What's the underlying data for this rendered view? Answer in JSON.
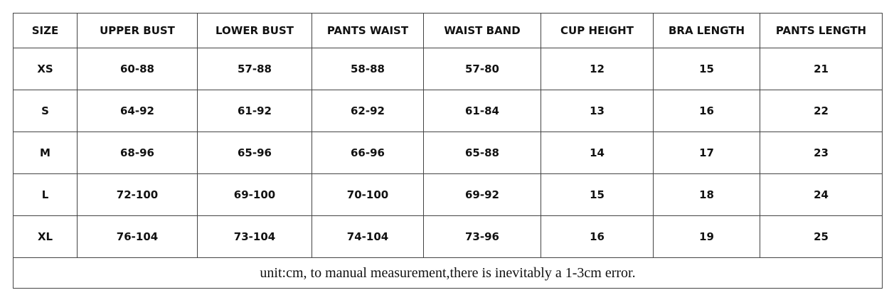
{
  "table": {
    "header": [
      "SIZE",
      "UPPER BUST",
      "LOWER BUST",
      "PANTS WAIST",
      "WAIST BAND",
      "CUP HEIGHT",
      "BRA LENGTH",
      "PANTS LENGTH"
    ],
    "rows": [
      [
        "XS",
        "60-88",
        "57-88",
        "58-88",
        "57-80",
        "12",
        "15",
        "21"
      ],
      [
        "S",
        "64-92",
        "61-92",
        "62-92",
        "61-84",
        "13",
        "16",
        "22"
      ],
      [
        "M",
        "68-96",
        "65-96",
        "66-96",
        "65-88",
        "14",
        "17",
        "23"
      ],
      [
        "L",
        "72-100",
        "69-100",
        "70-100",
        "69-92",
        "15",
        "18",
        "24"
      ],
      [
        "XL",
        "76-104",
        "73-104",
        "74-104",
        "73-96",
        "16",
        "19",
        "25"
      ]
    ],
    "note": "unit:cm, to manual measurement,there is inevitably a 1-3cm error."
  }
}
